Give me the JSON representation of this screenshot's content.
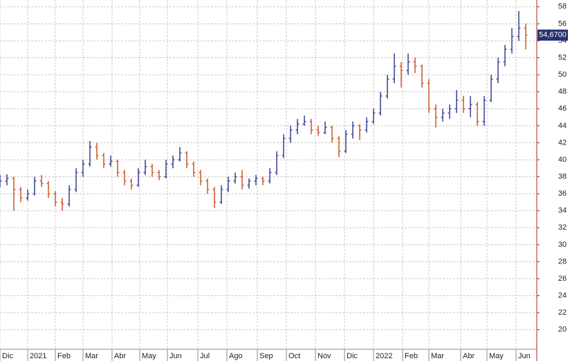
{
  "chart_data": {
    "type": "ohlc",
    "up_color": "#28308a",
    "down_color": "#c8481a",
    "grid": true,
    "xlim": [
      0,
      388
    ],
    "ylim": [
      17.7,
      58.8
    ],
    "yticks": [
      20,
      22,
      24,
      26,
      28,
      30,
      32,
      34,
      36,
      38,
      40,
      42,
      44,
      46,
      48,
      50,
      52,
      54,
      56,
      58
    ],
    "xticks": [
      {
        "value": 0,
        "label": "Dic"
      },
      {
        "value": 20,
        "label": "2021"
      },
      {
        "value": 40,
        "label": "Feb"
      },
      {
        "value": 60,
        "label": "Mar"
      },
      {
        "value": 81,
        "label": "Abr"
      },
      {
        "value": 101,
        "label": "May"
      },
      {
        "value": 121,
        "label": "Jun"
      },
      {
        "value": 143,
        "label": "Jul"
      },
      {
        "value": 164,
        "label": "Ago"
      },
      {
        "value": 186,
        "label": "Sep"
      },
      {
        "value": 207,
        "label": "Oct"
      },
      {
        "value": 228,
        "label": "Nov"
      },
      {
        "value": 249,
        "label": "Dic"
      },
      {
        "value": 270,
        "label": "2022"
      },
      {
        "value": 291,
        "label": "Feb"
      },
      {
        "value": 310,
        "label": "Mar"
      },
      {
        "value": 333,
        "label": "Abr"
      },
      {
        "value": 352,
        "label": "May"
      },
      {
        "value": 373,
        "label": "Jun"
      }
    ],
    "last_price": {
      "value": 54.67,
      "label": "54,6700"
    },
    "x": [
      0,
      5,
      10,
      15,
      20,
      25,
      30,
      35,
      40,
      45,
      50,
      55,
      60,
      65,
      70,
      75,
      80,
      85,
      90,
      95,
      100,
      105,
      110,
      115,
      120,
      125,
      130,
      135,
      140,
      145,
      150,
      155,
      160,
      165,
      170,
      175,
      180,
      185,
      190,
      195,
      200,
      205,
      210,
      215,
      220,
      225,
      230,
      235,
      240,
      245,
      250,
      255,
      260,
      265,
      270,
      275,
      280,
      285,
      290,
      295,
      300,
      305,
      310,
      315,
      320,
      325,
      330,
      335,
      340,
      345,
      350,
      355,
      360,
      365,
      370,
      375,
      380
    ],
    "open": [
      37.2,
      37.5,
      37.8,
      36.5,
      35.5,
      36.0,
      37.5,
      37.2,
      36.0,
      35.0,
      34.8,
      36.5,
      38.5,
      39.5,
      41.5,
      40.5,
      39.5,
      39.8,
      38.5,
      37.5,
      37.0,
      38.5,
      39.2,
      38.5,
      38.0,
      39.5,
      40.0,
      40.8,
      39.5,
      38.5,
      37.5,
      36.5,
      35.0,
      36.5,
      37.5,
      38.0,
      37.0,
      37.5,
      37.8,
      37.5,
      38.5,
      40.5,
      42.5,
      43.5,
      44.2,
      44.5,
      43.5,
      43.2,
      43.8,
      42.5,
      41.0,
      43.0,
      44.0,
      43.5,
      44.5,
      45.5,
      47.5,
      49.5,
      51.0,
      50.5,
      51.5,
      51.0,
      49.0,
      46.0,
      45.0,
      45.5,
      46.0,
      47.0,
      46.0,
      46.5,
      44.5,
      47.0,
      49.5,
      51.5,
      53.0,
      54.5,
      55.5
    ],
    "high": [
      38.2,
      38.3,
      38.0,
      36.8,
      36.5,
      38.0,
      38.2,
      37.5,
      36.3,
      35.5,
      37.0,
      39.0,
      40.0,
      42.2,
      42.0,
      40.8,
      40.5,
      40.0,
      38.8,
      37.8,
      39.0,
      40.0,
      39.5,
      38.8,
      40.0,
      40.5,
      41.5,
      41.0,
      39.8,
      38.8,
      37.8,
      36.8,
      37.0,
      38.0,
      38.5,
      38.8,
      37.8,
      38.2,
      38.0,
      39.0,
      41.0,
      43.0,
      44.0,
      44.8,
      45.2,
      44.8,
      44.0,
      44.5,
      44.0,
      42.8,
      43.5,
      44.5,
      44.2,
      45.0,
      46.0,
      48.0,
      50.0,
      52.5,
      51.5,
      52.5,
      52.0,
      51.2,
      49.5,
      46.5,
      46.0,
      46.5,
      48.2,
      47.5,
      47.5,
      46.8,
      47.5,
      50.0,
      52.0,
      53.5,
      55.5,
      57.5,
      56.0
    ],
    "low": [
      36.8,
      37.0,
      34.0,
      35.0,
      35.2,
      35.8,
      36.8,
      35.5,
      34.5,
      34.0,
      34.5,
      36.2,
      38.0,
      39.2,
      40.0,
      39.0,
      39.2,
      38.0,
      37.0,
      36.5,
      36.8,
      38.2,
      38.0,
      37.6,
      37.8,
      39.0,
      39.8,
      39.0,
      38.0,
      37.0,
      36.0,
      34.3,
      34.8,
      36.2,
      37.2,
      36.5,
      36.6,
      37.0,
      37.0,
      37.2,
      38.2,
      40.2,
      42.0,
      43.0,
      44.0,
      43.0,
      42.8,
      43.0,
      42.0,
      40.3,
      40.8,
      42.5,
      42.3,
      43.2,
      44.2,
      45.2,
      47.2,
      49.0,
      48.5,
      50.0,
      50.2,
      48.5,
      45.5,
      43.8,
      44.5,
      44.8,
      45.5,
      45.5,
      45.0,
      44.0,
      44.0,
      46.8,
      49.0,
      51.0,
      52.5,
      54.0,
      53.0
    ],
    "close": [
      37.5,
      37.8,
      36.5,
      35.5,
      36.0,
      37.5,
      37.2,
      36.0,
      35.0,
      34.8,
      36.5,
      38.5,
      39.5,
      41.5,
      40.5,
      39.5,
      39.8,
      38.5,
      37.5,
      37.0,
      38.5,
      39.2,
      38.5,
      38.0,
      39.5,
      40.0,
      40.8,
      39.5,
      38.5,
      37.5,
      36.5,
      35.0,
      36.5,
      37.5,
      38.0,
      37.0,
      37.5,
      37.8,
      37.5,
      38.5,
      40.5,
      42.5,
      43.5,
      44.2,
      44.5,
      43.5,
      43.2,
      43.8,
      42.5,
      41.0,
      43.0,
      44.0,
      43.5,
      44.5,
      45.5,
      47.5,
      49.5,
      51.0,
      50.5,
      51.5,
      51.0,
      49.0,
      46.0,
      45.0,
      45.5,
      46.0,
      47.0,
      46.0,
      46.5,
      44.5,
      47.0,
      49.5,
      51.5,
      53.0,
      54.5,
      55.5,
      54.67
    ]
  }
}
